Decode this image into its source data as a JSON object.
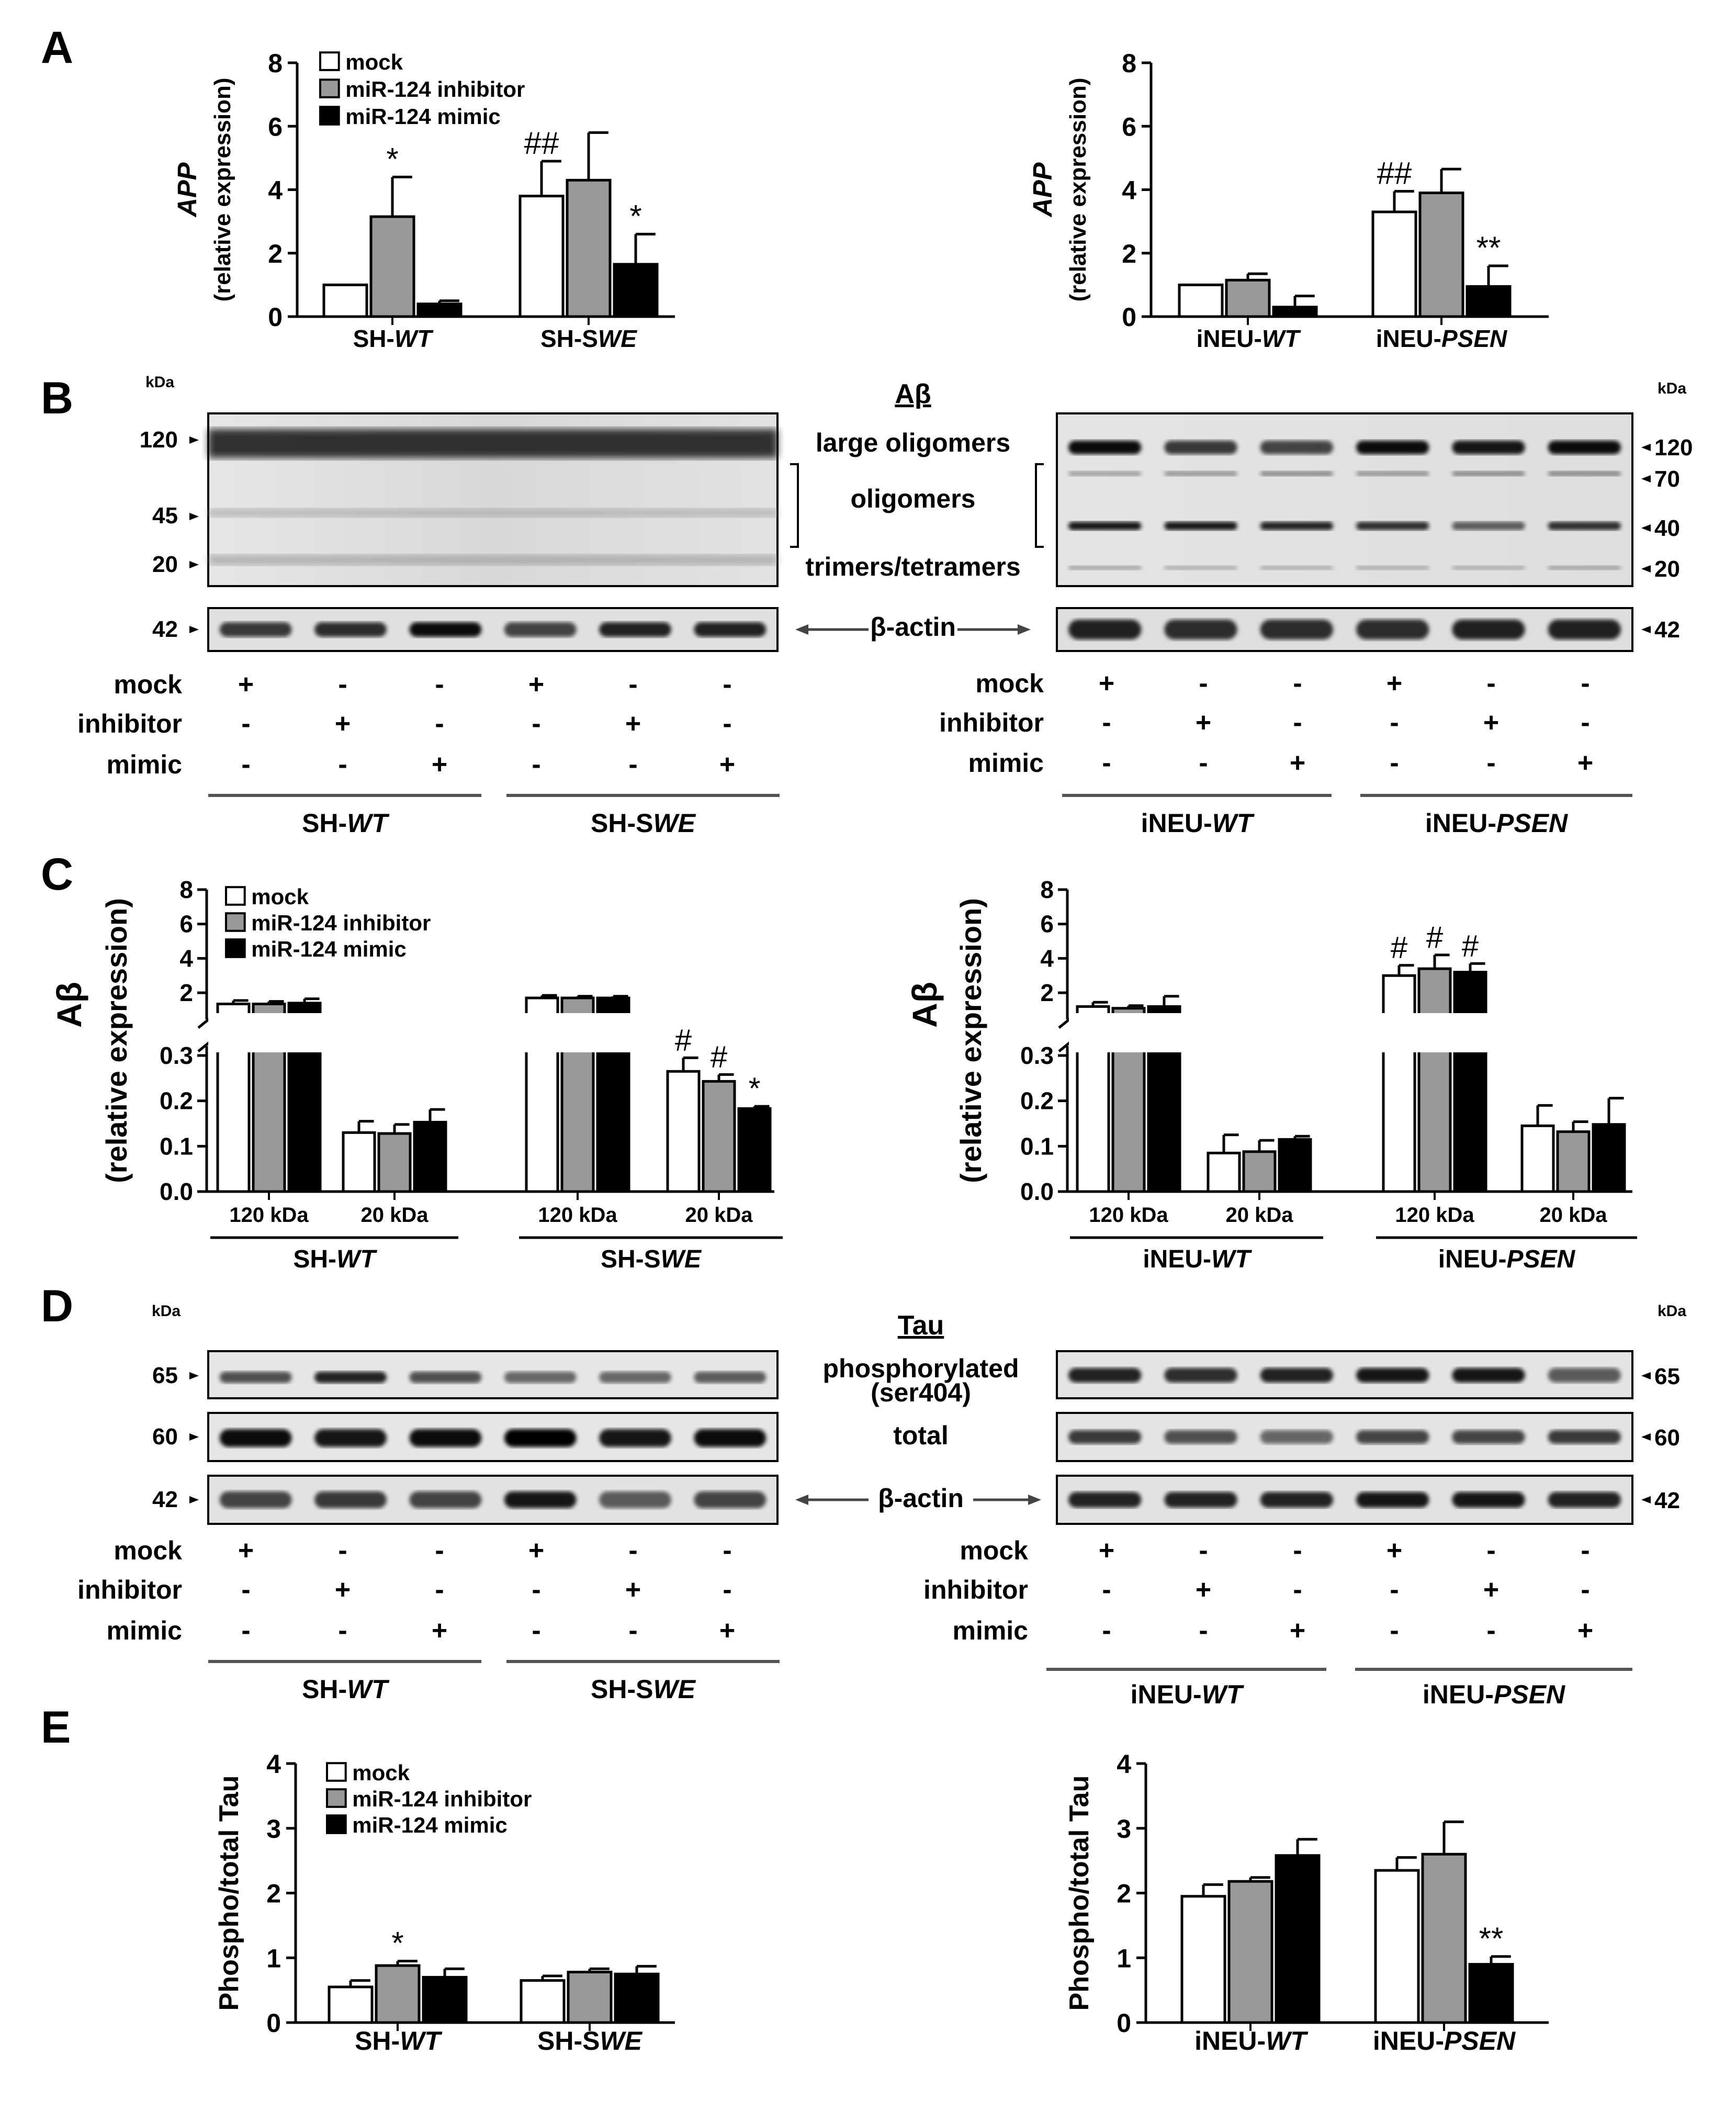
{
  "legend": {
    "mock": "mock",
    "inhibitor": "miR-124 inhibitor",
    "mimic": "miR-124 mimic"
  },
  "colors": {
    "mock": "#ffffff",
    "inhibitor": "#999999",
    "mimic": "#000000"
  },
  "panelLetters": [
    "A",
    "B",
    "C",
    "D",
    "E"
  ],
  "kda": "kDa",
  "treatmentRows": {
    "labels": [
      "mock",
      "inhibitor",
      "mimic"
    ],
    "marks": [
      [
        "+",
        "-",
        "-",
        "+",
        "-",
        "-"
      ],
      [
        "-",
        "+",
        "-",
        "-",
        "+",
        "-"
      ],
      [
        "-",
        "-",
        "+",
        "-",
        "-",
        "+"
      ]
    ]
  },
  "groups": {
    "shWT": {
      "prefix": "SH-",
      "italic": "WT"
    },
    "shSWE": {
      "prefix": "SH-S",
      "italic": "WE"
    },
    "ineuWT": {
      "prefix": "iNEU-",
      "italic": "WT"
    },
    "ineuPSEN": {
      "prefix": "iNEU-",
      "italic": "PSEN"
    }
  },
  "panelB": {
    "title": "Aβ",
    "bandLabels": [
      "large oligomers",
      "oligomers",
      "trimers/tetramers"
    ],
    "actin": "β-actin",
    "leftMarkers": [
      "120",
      "45",
      "20",
      "42"
    ],
    "rightMarkers": [
      "120",
      "70",
      "40",
      "20",
      "42"
    ]
  },
  "panelD": {
    "title": "Tau",
    "phospho1": "phosphorylated",
    "phospho2": "(ser404)",
    "total": "total",
    "actin": "β-actin",
    "markers": [
      "65",
      "60",
      "42"
    ]
  },
  "chart_data": [
    {
      "panel": "A-left",
      "type": "bar",
      "ylabel_italic": "APP",
      "ylabel": "(relative expression)",
      "ylim": [
        0,
        8
      ],
      "yticks": [
        0,
        2,
        4,
        6,
        8
      ],
      "categories": [
        "SH-WT",
        "SH-SWE"
      ],
      "series": [
        {
          "name": "mock",
          "values": [
            1.0,
            3.8
          ],
          "errors": [
            0,
            1.1
          ]
        },
        {
          "name": "miR-124 inhibitor",
          "values": [
            3.15,
            4.3
          ],
          "errors": [
            1.25,
            1.5
          ]
        },
        {
          "name": "miR-124 mimic",
          "values": [
            0.4,
            1.65
          ],
          "errors": [
            0.1,
            0.95
          ]
        }
      ],
      "annotations": [
        {
          "category": 0,
          "series": 1,
          "text": "*"
        },
        {
          "category": 1,
          "series": 0,
          "text": "##"
        },
        {
          "category": 1,
          "series": 2,
          "text": "*"
        }
      ]
    },
    {
      "panel": "A-right",
      "type": "bar",
      "ylabel_italic": "APP",
      "ylabel": "(relative expression)",
      "ylim": [
        0,
        8
      ],
      "yticks": [
        0,
        2,
        4,
        6,
        8
      ],
      "categories": [
        "iNEU-WT",
        "iNEU-PSEN"
      ],
      "series": [
        {
          "name": "mock",
          "values": [
            1.0,
            3.3
          ],
          "errors": [
            0,
            0.65
          ]
        },
        {
          "name": "miR-124 inhibitor",
          "values": [
            1.15,
            3.9
          ],
          "errors": [
            0.2,
            0.75
          ]
        },
        {
          "name": "miR-124 mimic",
          "values": [
            0.3,
            0.95
          ],
          "errors": [
            0.35,
            0.65
          ]
        }
      ],
      "annotations": [
        {
          "category": 1,
          "series": 0,
          "text": "##"
        },
        {
          "category": 1,
          "series": 2,
          "text": "**"
        }
      ]
    },
    {
      "panel": "C-left",
      "type": "bar",
      "broken_axis": true,
      "ylabel": "Aβ",
      "ylabel2": "(relative expression)",
      "lower_ylim": [
        0,
        0.3
      ],
      "lower_yticks": [
        0.0,
        0.1,
        0.2,
        0.3
      ],
      "upper_ylim": [
        1,
        8
      ],
      "upper_yticks": [
        2,
        4,
        6,
        8
      ],
      "categories": [
        "120 kDa",
        "20 kDa",
        "120 kDa",
        "20 kDa"
      ],
      "groups": [
        "SH-WT",
        "SH-SWE"
      ],
      "series": [
        {
          "name": "mock",
          "values": [
            1.35,
            0.13,
            1.7,
            0.265
          ],
          "errors": [
            0.2,
            0.025,
            0.15,
            0.03
          ]
        },
        {
          "name": "miR-124 inhibitor",
          "values": [
            1.35,
            0.128,
            1.7,
            0.243
          ],
          "errors": [
            0.15,
            0.02,
            0.1,
            0.015
          ]
        },
        {
          "name": "miR-124 mimic",
          "values": [
            1.4,
            0.153,
            1.7,
            0.183
          ],
          "errors": [
            0.25,
            0.028,
            0.1,
            0.005
          ]
        }
      ],
      "annotations": [
        {
          "category": 3,
          "series": 0,
          "text": "#"
        },
        {
          "category": 3,
          "series": 1,
          "text": "#"
        },
        {
          "category": 3,
          "series": 2,
          "text": "*"
        }
      ]
    },
    {
      "panel": "C-right",
      "type": "bar",
      "broken_axis": true,
      "ylabel": "Aβ",
      "ylabel2": "(relative expression)",
      "lower_ylim": [
        0,
        0.3
      ],
      "lower_yticks": [
        0.0,
        0.1,
        0.2,
        0.3
      ],
      "upper_ylim": [
        1,
        8
      ],
      "upper_yticks": [
        2,
        4,
        6,
        8
      ],
      "categories": [
        "120 kDa",
        "20 kDa",
        "120 kDa",
        "20 kDa"
      ],
      "groups": [
        "iNEU-WT",
        "iNEU-PSEN"
      ],
      "series": [
        {
          "name": "mock",
          "values": [
            1.2,
            0.085,
            3.0,
            0.145
          ],
          "errors": [
            0.25,
            0.04,
            0.6,
            0.045
          ]
        },
        {
          "name": "miR-124 inhibitor",
          "values": [
            1.1,
            0.088,
            3.4,
            0.132
          ],
          "errors": [
            0.15,
            0.025,
            0.8,
            0.022
          ]
        },
        {
          "name": "miR-124 mimic",
          "values": [
            1.2,
            0.115,
            3.2,
            0.148
          ],
          "errors": [
            0.6,
            0.007,
            0.5,
            0.058
          ]
        }
      ],
      "annotations": [
        {
          "category": 2,
          "series": 0,
          "text": "#"
        },
        {
          "category": 2,
          "series": 1,
          "text": "#"
        },
        {
          "category": 2,
          "series": 2,
          "text": "#"
        }
      ]
    },
    {
      "panel": "E-left",
      "type": "bar",
      "ylabel": "Phospho/total Tau",
      "ylim": [
        0,
        4
      ],
      "yticks": [
        0,
        1,
        2,
        3,
        4
      ],
      "categories": [
        "SH-WT",
        "SH-SWE"
      ],
      "series": [
        {
          "name": "mock",
          "values": [
            0.55,
            0.65
          ],
          "errors": [
            0.1,
            0.07
          ]
        },
        {
          "name": "miR-124 inhibitor",
          "values": [
            0.88,
            0.78
          ],
          "errors": [
            0.07,
            0.05
          ]
        },
        {
          "name": "miR-124 mimic",
          "values": [
            0.7,
            0.75
          ],
          "errors": [
            0.13,
            0.12
          ]
        }
      ],
      "annotations": [
        {
          "category": 0,
          "series": 1,
          "text": "*"
        }
      ]
    },
    {
      "panel": "E-right",
      "type": "bar",
      "ylabel": "Phospho/total Tau",
      "ylim": [
        0,
        4
      ],
      "yticks": [
        0,
        1,
        2,
        3,
        4
      ],
      "categories": [
        "iNEU-WT",
        "iNEU-PSEN"
      ],
      "series": [
        {
          "name": "mock",
          "values": [
            1.95,
            2.35
          ],
          "errors": [
            0.18,
            0.2
          ]
        },
        {
          "name": "miR-124 inhibitor",
          "values": [
            2.18,
            2.6
          ],
          "errors": [
            0.06,
            0.5
          ]
        },
        {
          "name": "miR-124 mimic",
          "values": [
            2.58,
            0.9
          ],
          "errors": [
            0.25,
            0.12
          ]
        }
      ],
      "annotations": [
        {
          "category": 1,
          "series": 2,
          "text": "**"
        }
      ]
    }
  ]
}
